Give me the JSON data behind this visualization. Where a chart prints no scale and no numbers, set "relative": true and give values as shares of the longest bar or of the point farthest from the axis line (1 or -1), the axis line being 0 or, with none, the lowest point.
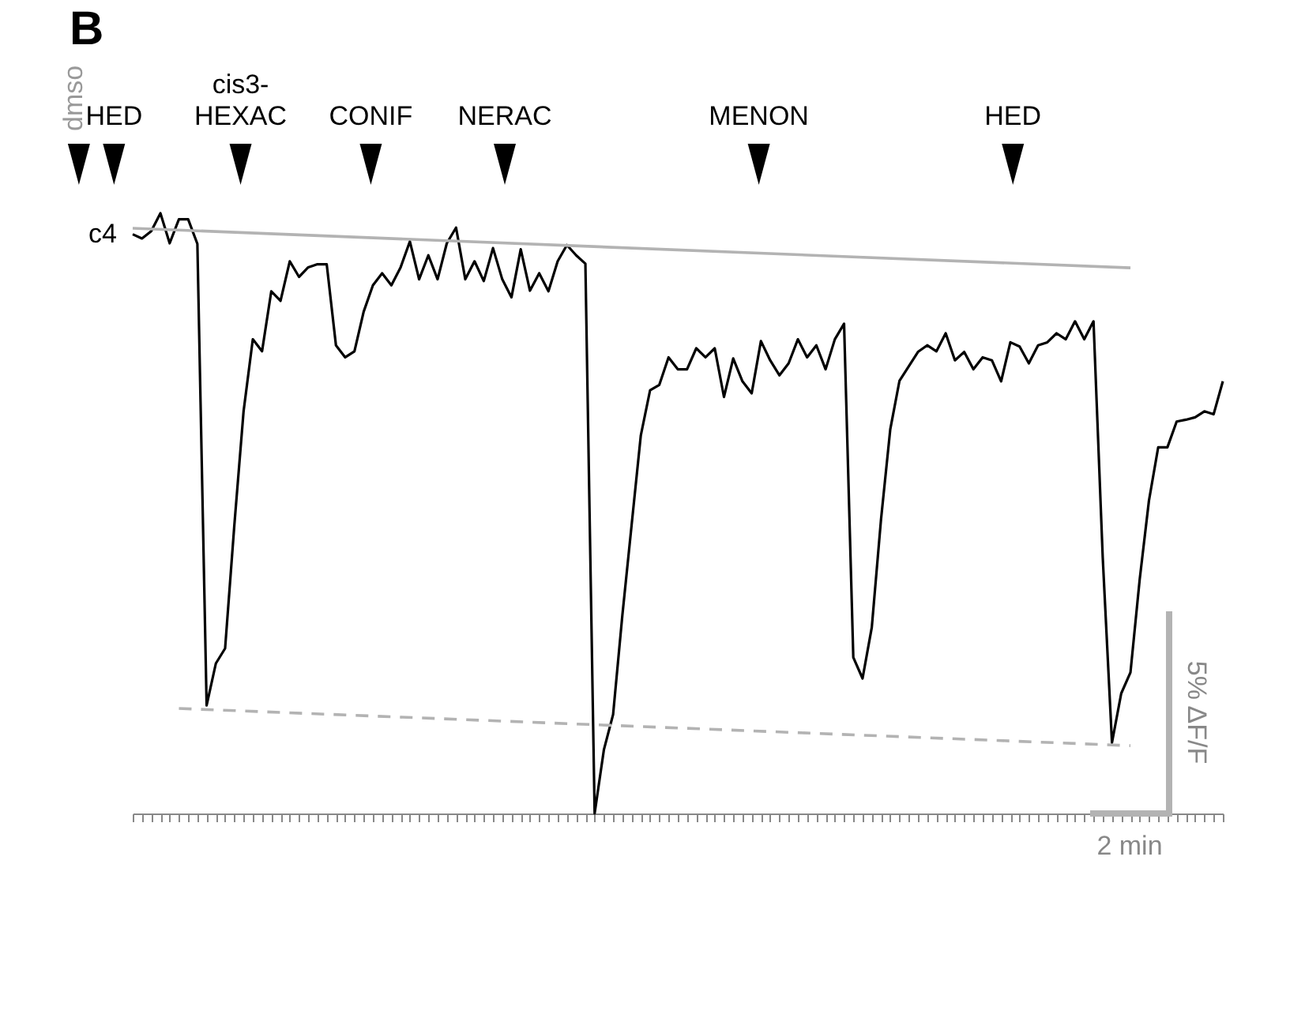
{
  "chart_data": {
    "type": "line",
    "title": "B",
    "relative": true,
    "categories": [
      null,
      null,
      null,
      null,
      null,
      null,
      null,
      null,
      null,
      null,
      null,
      null,
      null,
      null,
      null,
      null,
      null,
      null,
      null,
      null,
      null,
      null,
      null,
      null,
      null,
      null,
      null,
      null,
      null,
      null,
      null,
      null,
      null,
      null,
      null,
      null,
      null,
      null,
      null,
      null,
      null,
      null,
      null,
      null,
      null,
      null,
      null,
      null,
      null,
      null,
      null,
      null,
      null,
      null,
      null,
      null,
      null,
      null,
      null,
      null,
      null,
      null,
      null,
      null,
      null,
      null,
      null,
      null,
      null,
      null,
      null,
      null,
      null,
      null,
      null,
      null,
      null,
      null,
      null,
      null,
      null,
      null,
      null,
      null,
      null,
      null,
      null,
      null,
      null,
      null,
      null,
      null,
      null,
      null,
      null,
      null,
      null,
      null,
      null,
      null,
      null,
      null,
      null,
      null,
      null,
      null,
      null,
      null,
      null,
      null,
      null,
      null,
      null,
      null,
      null,
      null,
      null,
      null,
      null
    ],
    "annotations": [
      "dmso",
      "HED",
      "cis3-\nHEXAC",
      "CONIF",
      "NERAC",
      "MENON",
      "HED",
      "5% ΔF/F",
      "2 min"
    ],
    "series": [
      {
        "name": "c4",
        "color": "#000000",
        "values": [
          0.965,
          0.958,
          0.97,
          1.0,
          0.95,
          0.99,
          0.99,
          0.949,
          0.18,
          0.25,
          0.275,
          0.48,
          0.67,
          0.79,
          0.77,
          0.87,
          0.854,
          0.92,
          0.894,
          0.91,
          0.915,
          0.915,
          0.78,
          0.76,
          0.77,
          0.836,
          0.88,
          0.9,
          0.88,
          0.91,
          0.953,
          0.89,
          0.93,
          0.89,
          0.95,
          0.976,
          0.89,
          0.92,
          0.887,
          0.942,
          0.89,
          0.86,
          0.94,
          0.871,
          0.9,
          0.87,
          0.92,
          0.947,
          0.93,
          0.916,
          0,
          0.106,
          0.165,
          0.33,
          0.48,
          0.63,
          0.705,
          0.714,
          0.76,
          0.74,
          0.74,
          0.775,
          0.76,
          0.775,
          0.694,
          0.758,
          0.72,
          0.7,
          0.787,
          0.755,
          0.73,
          0.75,
          0.79,
          0.76,
          0.78,
          0.74,
          0.79,
          0.816,
          0.26,
          0.225,
          0.31,
          0.49,
          0.64,
          0.721,
          0.745,
          0.769,
          0.78,
          0.77,
          0.8,
          0.755,
          0.769,
          0.74,
          0.76,
          0.755,
          0.72,
          0.785,
          0.778,
          0.75,
          0.78,
          0.785,
          0.8,
          0.79,
          0.82,
          0.79,
          0.82,
          0.426,
          0.118,
          0.2,
          0.235,
          0.39,
          0.521,
          0.61,
          0.61,
          0.653,
          0.656,
          0.66,
          0.67,
          0.665,
          0.72
        ]
      },
      {
        "color": "#b3b3b3",
        "values": [
          0.975,
          null,
          null,
          null,
          null,
          null,
          null,
          null,
          null,
          null,
          null,
          null,
          null,
          null,
          null,
          null,
          null,
          null,
          null,
          null,
          null,
          null,
          null,
          null,
          null,
          null,
          null,
          null,
          null,
          null,
          null,
          null,
          null,
          null,
          null,
          null,
          null,
          null,
          null,
          null,
          null,
          null,
          null,
          null,
          null,
          null,
          null,
          null,
          null,
          null,
          null,
          null,
          null,
          null,
          null,
          null,
          null,
          null,
          null,
          null,
          null,
          null,
          null,
          null,
          null,
          null,
          null,
          null,
          null,
          null,
          null,
          null,
          null,
          null,
          null,
          null,
          null,
          null,
          null,
          null,
          null,
          null,
          null,
          null,
          null,
          null,
          null,
          null,
          null,
          null,
          null,
          null,
          null,
          null,
          null,
          null,
          null,
          null,
          null,
          null,
          null,
          null,
          null,
          null,
          null,
          null,
          null,
          null,
          0.909,
          null,
          null,
          null,
          null,
          null,
          null,
          null,
          null,
          null,
          null
        ]
      },
      {
        "color": "#b3b3b3",
        "line_style": "dashed",
        "values": [
          null,
          null,
          null,
          null,
          null,
          0.175,
          null,
          null,
          null,
          null,
          null,
          null,
          null,
          null,
          null,
          null,
          null,
          null,
          null,
          null,
          null,
          null,
          null,
          null,
          null,
          null,
          null,
          null,
          null,
          null,
          null,
          null,
          null,
          null,
          null,
          null,
          null,
          null,
          null,
          null,
          null,
          null,
          null,
          null,
          null,
          null,
          null,
          null,
          null,
          null,
          null,
          null,
          null,
          null,
          null,
          null,
          null,
          null,
          null,
          null,
          null,
          null,
          null,
          null,
          null,
          null,
          null,
          null,
          null,
          null,
          null,
          null,
          null,
          null,
          null,
          null,
          null,
          null,
          null,
          null,
          null,
          null,
          null,
          null,
          null,
          null,
          null,
          null,
          null,
          null,
          null,
          null,
          null,
          null,
          null,
          null,
          null,
          null,
          null,
          null,
          null,
          null,
          null,
          null,
          null,
          null,
          null,
          null,
          0.113,
          null,
          null,
          null,
          null,
          null,
          null,
          null,
          null,
          null,
          null
        ]
      }
    ]
  }
}
